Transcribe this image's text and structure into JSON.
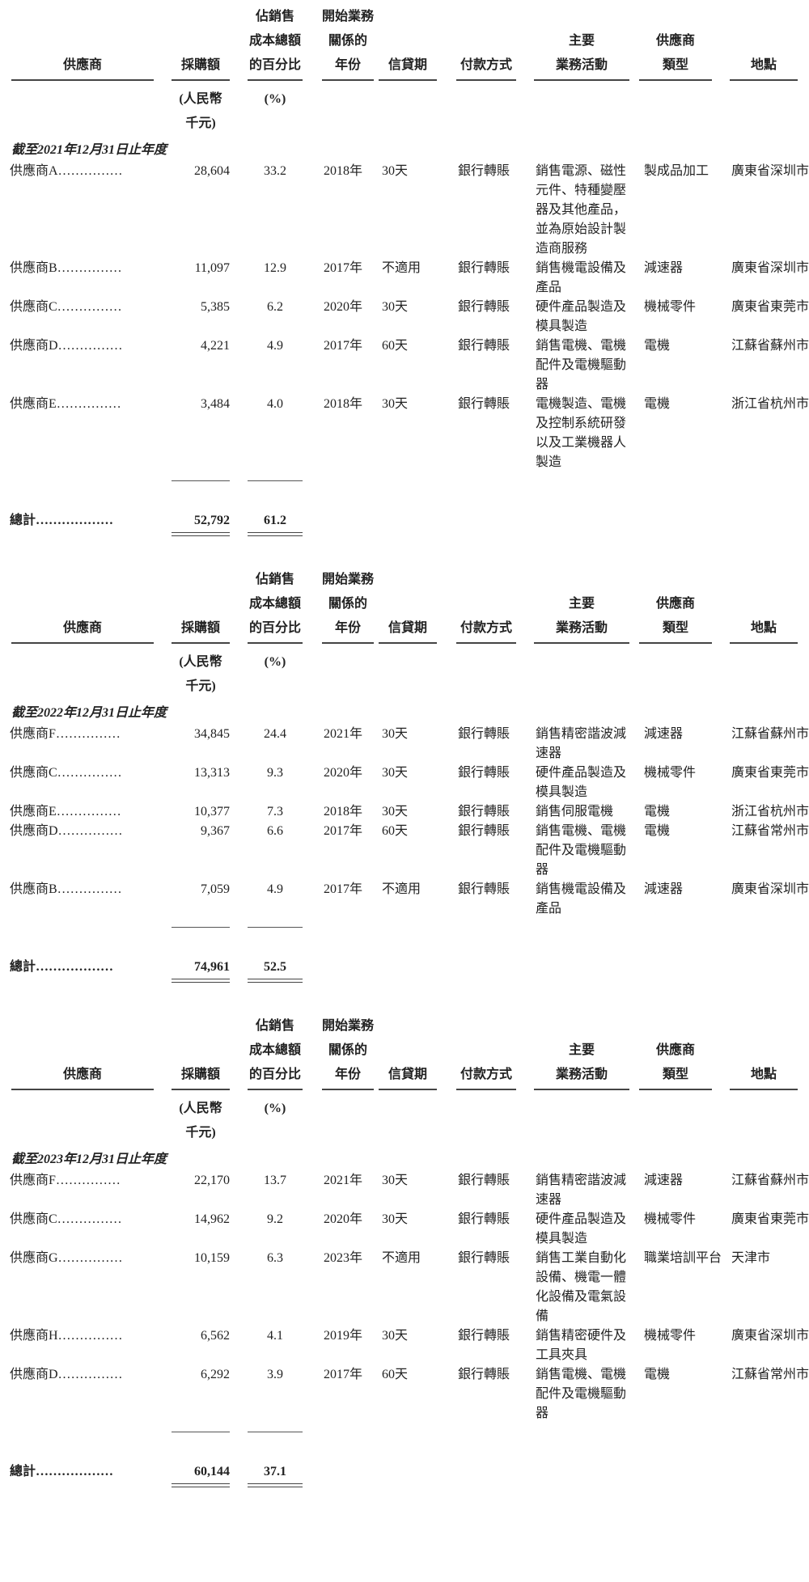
{
  "headers": {
    "supplier": "供應商",
    "amount": "採購額",
    "pct": "佔銷售\n成本總額\n的百分比",
    "year": "開始業務\n關係的\n年份",
    "credit": "信貸期",
    "payment": "付款方式",
    "activity": "主要\n業務活動",
    "type": "供應商\n類型",
    "location": "地點"
  },
  "units": {
    "amount": "(人民幣\n千元)",
    "pct": "(%)"
  },
  "tables": [
    {
      "period": "截至2021年12月31日止年度",
      "rows": [
        {
          "name": "供應商A……………",
          "amount": "28,604",
          "pct": "33.2",
          "year": "2018年",
          "credit": "30天",
          "payment": "銀行轉賬",
          "activity": "銷售電源、磁性元件、特種變壓器及其他產品，並為原始設計製造商服務",
          "type": "製成品加工",
          "location": "廣東省深圳市"
        },
        {
          "name": "供應商B……………",
          "amount": "11,097",
          "pct": "12.9",
          "year": "2017年",
          "credit": "不適用",
          "payment": "銀行轉賬",
          "activity": "銷售機電設備及產品",
          "type": "減速器",
          "location": "廣東省深圳市"
        },
        {
          "name": "供應商C……………",
          "amount": "5,385",
          "pct": "6.2",
          "year": "2020年",
          "credit": "30天",
          "payment": "銀行轉賬",
          "activity": "硬件產品製造及模具製造",
          "type": "機械零件",
          "location": "廣東省東莞市"
        },
        {
          "name": "供應商D……………",
          "amount": "4,221",
          "pct": "4.9",
          "year": "2017年",
          "credit": "60天",
          "payment": "銀行轉賬",
          "activity": "銷售電機、電機配件及電機驅動器",
          "type": "電機",
          "location": "江蘇省蘇州市"
        },
        {
          "name": "供應商E……………",
          "amount": "3,484",
          "pct": "4.0",
          "year": "2018年",
          "credit": "30天",
          "payment": "銀行轉賬",
          "activity": "電機製造、電機及控制系統研發以及工業機器人製造",
          "type": "電機",
          "location": "浙江省杭州市"
        }
      ],
      "total": {
        "label": "總計………………",
        "amount": "52,792",
        "pct": "61.2"
      }
    },
    {
      "period": "截至2022年12月31日止年度",
      "rows": [
        {
          "name": "供應商F……………",
          "amount": "34,845",
          "pct": "24.4",
          "year": "2021年",
          "credit": "30天",
          "payment": "銀行轉賬",
          "activity": "銷售精密諧波減速器",
          "type": "減速器",
          "location": "江蘇省蘇州市"
        },
        {
          "name": "供應商C……………",
          "amount": "13,313",
          "pct": "9.3",
          "year": "2020年",
          "credit": "30天",
          "payment": "銀行轉賬",
          "activity": "硬件產品製造及模具製造",
          "type": "機械零件",
          "location": "廣東省東莞市"
        },
        {
          "name": "供應商E……………",
          "amount": "10,377",
          "pct": "7.3",
          "year": "2018年",
          "credit": "30天",
          "payment": "銀行轉賬",
          "activity": "銷售伺服電機",
          "type": "電機",
          "location": "浙江省杭州市"
        },
        {
          "name": "供應商D……………",
          "amount": "9,367",
          "pct": "6.6",
          "year": "2017年",
          "credit": "60天",
          "payment": "銀行轉賬",
          "activity": "銷售電機、電機配件及電機驅動器",
          "type": "電機",
          "location": "江蘇省常州市"
        },
        {
          "name": "供應商B……………",
          "amount": "7,059",
          "pct": "4.9",
          "year": "2017年",
          "credit": "不適用",
          "payment": "銀行轉賬",
          "activity": "銷售機電設備及產品",
          "type": "減速器",
          "location": "廣東省深圳市"
        }
      ],
      "total": {
        "label": "總計………………",
        "amount": "74,961",
        "pct": "52.5"
      }
    },
    {
      "period": "截至2023年12月31日止年度",
      "rows": [
        {
          "name": "供應商F……………",
          "amount": "22,170",
          "pct": "13.7",
          "year": "2021年",
          "credit": "30天",
          "payment": "銀行轉賬",
          "activity": "銷售精密諧波減速器",
          "type": "減速器",
          "location": "江蘇省蘇州市"
        },
        {
          "name": "供應商C……………",
          "amount": "14,962",
          "pct": "9.2",
          "year": "2020年",
          "credit": "30天",
          "payment": "銀行轉賬",
          "activity": "硬件產品製造及模具製造",
          "type": "機械零件",
          "location": "廣東省東莞市"
        },
        {
          "name": "供應商G……………",
          "amount": "10,159",
          "pct": "6.3",
          "year": "2023年",
          "credit": "不適用",
          "payment": "銀行轉賬",
          "activity": "銷售工業自動化設備、機電一體化設備及電氣設備",
          "type": "職業培訓平台",
          "location": "天津市"
        },
        {
          "name": "供應商H……………",
          "amount": "6,562",
          "pct": "4.1",
          "year": "2019年",
          "credit": "30天",
          "payment": "銀行轉賬",
          "activity": "銷售精密硬件及工具夾具",
          "type": "機械零件",
          "location": "廣東省深圳市"
        },
        {
          "name": "供應商D……………",
          "amount": "6,292",
          "pct": "3.9",
          "year": "2017年",
          "credit": "60天",
          "payment": "銀行轉賬",
          "activity": "銷售電機、電機配件及電機驅動器",
          "type": "電機",
          "location": "江蘇省常州市"
        }
      ],
      "total": {
        "label": "總計………………",
        "amount": "60,144",
        "pct": "37.1"
      }
    }
  ]
}
